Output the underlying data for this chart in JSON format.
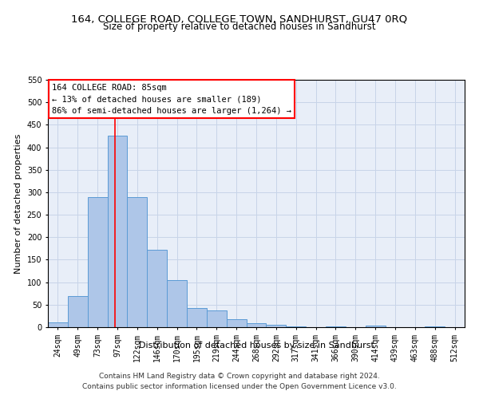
{
  "title": "164, COLLEGE ROAD, COLLEGE TOWN, SANDHURST, GU47 0RQ",
  "subtitle": "Size of property relative to detached houses in Sandhurst",
  "xlabel": "Distribution of detached houses by size in Sandhurst",
  "ylabel": "Number of detached properties",
  "categories": [
    "24sqm",
    "49sqm",
    "73sqm",
    "97sqm",
    "122sqm",
    "146sqm",
    "170sqm",
    "195sqm",
    "219sqm",
    "244sqm",
    "268sqm",
    "292sqm",
    "317sqm",
    "341sqm",
    "366sqm",
    "390sqm",
    "414sqm",
    "439sqm",
    "463sqm",
    "488sqm",
    "512sqm"
  ],
  "values": [
    10,
    70,
    290,
    425,
    290,
    172,
    105,
    43,
    38,
    17,
    9,
    5,
    2,
    0,
    1,
    0,
    3,
    0,
    0,
    1,
    0
  ],
  "bar_color": "#aec6e8",
  "bar_edge_color": "#5b9bd5",
  "bar_width": 1.0,
  "vline_x": 2.87,
  "vline_color": "red",
  "annotation_line1": "164 COLLEGE ROAD: 85sqm",
  "annotation_line2": "← 13% of detached houses are smaller (189)",
  "annotation_line3": "86% of semi-detached houses are larger (1,264) →",
  "annotation_box_color": "red",
  "ylim": [
    0,
    550
  ],
  "yticks": [
    0,
    50,
    100,
    150,
    200,
    250,
    300,
    350,
    400,
    450,
    500,
    550
  ],
  "grid_color": "#c8d4e8",
  "background_color": "#e8eef8",
  "footer_line1": "Contains HM Land Registry data © Crown copyright and database right 2024.",
  "footer_line2": "Contains public sector information licensed under the Open Government Licence v3.0.",
  "title_fontsize": 9.5,
  "subtitle_fontsize": 8.5,
  "axis_label_fontsize": 8,
  "tick_fontsize": 7,
  "annotation_fontsize": 7.5,
  "footer_fontsize": 6.5
}
